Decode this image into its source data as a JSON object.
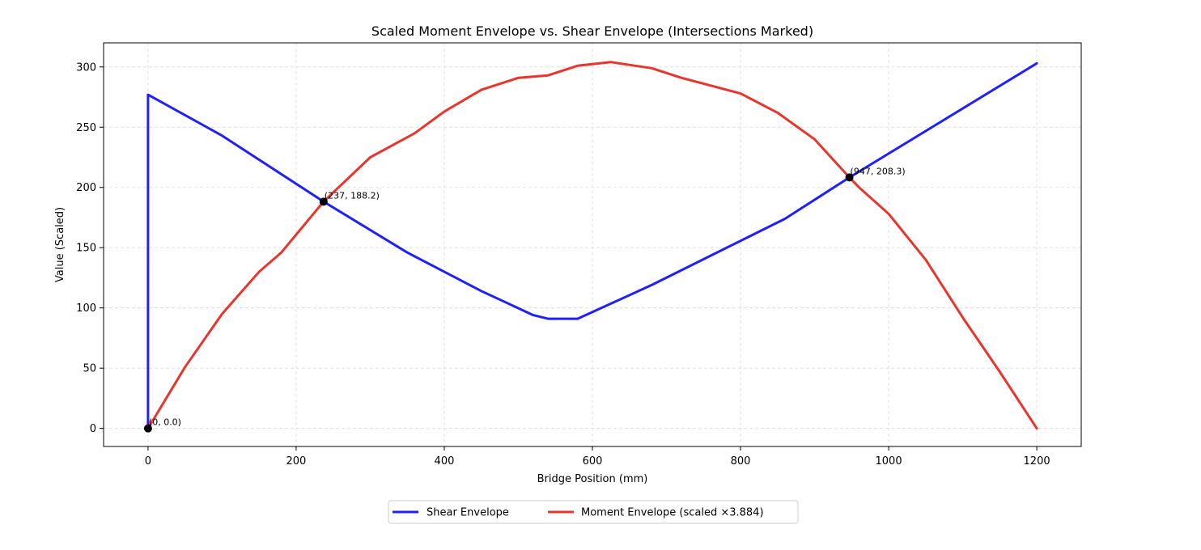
{
  "chart_data": {
    "type": "line",
    "title": "Scaled Moment Envelope vs. Shear Envelope (Intersections Marked)",
    "xlabel": "Bridge Position (mm)",
    "ylabel": "Value (Scaled)",
    "xlim": [
      -60,
      1260
    ],
    "ylim": [
      -15,
      320
    ],
    "xticks": [
      0,
      200,
      400,
      600,
      800,
      1000,
      1200
    ],
    "yticks": [
      0,
      50,
      100,
      150,
      200,
      250,
      300
    ],
    "grid": true,
    "legend_position": "bottom-center",
    "series": [
      {
        "name": "Shear Envelope",
        "color": "#1f1fff",
        "x": [
          0,
          0,
          100,
          237,
          350,
          450,
          520,
          540,
          580,
          680,
          860,
          947,
          1200
        ],
        "y": [
          0,
          277,
          243,
          188.2,
          146,
          114,
          94,
          91,
          91,
          119,
          174,
          208.3,
          303
        ]
      },
      {
        "name": "Moment Envelope (scaled ×3.884)",
        "color": "#e8352e",
        "x": [
          0,
          50,
          100,
          150,
          180,
          237,
          300,
          360,
          400,
          450,
          500,
          540,
          580,
          625,
          680,
          720,
          800,
          850,
          900,
          947,
          960,
          1000,
          1050,
          1100,
          1150,
          1200
        ],
        "y": [
          0,
          51,
          95,
          130,
          146,
          188.2,
          225,
          245,
          263,
          281,
          291,
          293,
          301,
          304,
          299,
          291,
          278,
          262,
          240,
          208.3,
          200,
          178,
          140,
          92,
          47,
          0
        ]
      }
    ],
    "annotations": [
      {
        "x": 0,
        "y": 0.0,
        "label": "(0, 0.0)"
      },
      {
        "x": 237,
        "y": 188.2,
        "label": "(237, 188.2)"
      },
      {
        "x": 947,
        "y": 208.3,
        "label": "(947, 208.3)"
      }
    ]
  }
}
